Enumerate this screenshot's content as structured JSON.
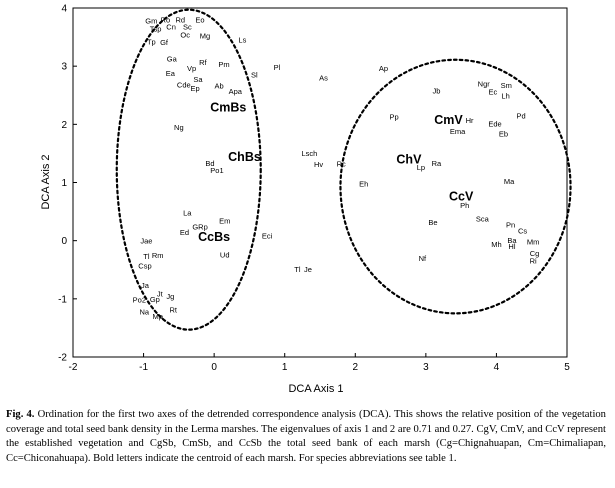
{
  "chart_data": {
    "type": "scatter",
    "xlabel": "DCA Axis 1",
    "ylabel": "DCA Axis 2",
    "xlim": [
      -2,
      5
    ],
    "ylim": [
      -2,
      4
    ],
    "xticks": [
      "-2",
      "-1",
      "0",
      "1",
      "2",
      "3",
      "4",
      "5"
    ],
    "yticks": [
      "-2",
      "-1",
      "0",
      "1",
      "2",
      "3",
      "4"
    ],
    "grid": false,
    "species": [
      {
        "label": "Gm",
        "x": -0.89,
        "y": 3.78
      },
      {
        "label": "Ro",
        "x": -0.69,
        "y": 3.8
      },
      {
        "label": "Rd",
        "x": -0.48,
        "y": 3.8
      },
      {
        "label": "Eo",
        "x": -0.2,
        "y": 3.8
      },
      {
        "label": "Tsp",
        "x": -0.83,
        "y": 3.64
      },
      {
        "label": "Cn",
        "x": -0.61,
        "y": 3.68
      },
      {
        "label": "Sc",
        "x": -0.38,
        "y": 3.68
      },
      {
        "label": "Oc",
        "x": -0.41,
        "y": 3.54
      },
      {
        "label": "Mg",
        "x": -0.13,
        "y": 3.52
      },
      {
        "label": "Tp",
        "x": -0.89,
        "y": 3.42
      },
      {
        "label": "Gf",
        "x": -0.71,
        "y": 3.41
      },
      {
        "label": "Ls",
        "x": 0.4,
        "y": 3.45
      },
      {
        "label": "Ga",
        "x": -0.6,
        "y": 3.13
      },
      {
        "label": "Rf",
        "x": -0.16,
        "y": 3.07
      },
      {
        "label": "Pm",
        "x": 0.14,
        "y": 3.03
      },
      {
        "label": "Pl",
        "x": 0.89,
        "y": 2.98
      },
      {
        "label": "Vp",
        "x": -0.32,
        "y": 2.96
      },
      {
        "label": "Ea",
        "x": -0.62,
        "y": 2.88
      },
      {
        "label": "Sl",
        "x": 0.57,
        "y": 2.85
      },
      {
        "label": "As",
        "x": 1.55,
        "y": 2.8
      },
      {
        "label": "Ap",
        "x": 2.4,
        "y": 2.96
      },
      {
        "label": "Sa",
        "x": -0.23,
        "y": 2.77
      },
      {
        "label": "Cde",
        "x": -0.43,
        "y": 2.68
      },
      {
        "label": "Ep",
        "x": -0.27,
        "y": 2.62
      },
      {
        "label": "Ab",
        "x": 0.07,
        "y": 2.66
      },
      {
        "label": "Apa",
        "x": 0.3,
        "y": 2.57
      },
      {
        "label": "Jb",
        "x": 3.15,
        "y": 2.58
      },
      {
        "label": "Ngr",
        "x": 3.82,
        "y": 2.7
      },
      {
        "label": "Sm",
        "x": 4.14,
        "y": 2.67
      },
      {
        "label": "Ec",
        "x": 3.95,
        "y": 2.56
      },
      {
        "label": "Lh",
        "x": 4.13,
        "y": 2.49
      },
      {
        "label": "Pp",
        "x": 2.55,
        "y": 2.13
      },
      {
        "label": "Hr",
        "x": 3.62,
        "y": 2.07
      },
      {
        "label": "Pd",
        "x": 4.35,
        "y": 2.15
      },
      {
        "label": "Ede",
        "x": 3.98,
        "y": 2.01
      },
      {
        "label": "Ema",
        "x": 3.45,
        "y": 1.88
      },
      {
        "label": "Eb",
        "x": 4.1,
        "y": 1.84
      },
      {
        "label": "Ng",
        "x": -0.5,
        "y": 1.95
      },
      {
        "label": "Lsch",
        "x": 1.35,
        "y": 1.5
      },
      {
        "label": "Hv",
        "x": 1.48,
        "y": 1.31
      },
      {
        "label": "Rc",
        "x": 1.8,
        "y": 1.32
      },
      {
        "label": "Bd",
        "x": -0.06,
        "y": 1.33
      },
      {
        "label": "Po1",
        "x": 0.04,
        "y": 1.21
      },
      {
        "label": "Lp",
        "x": 2.93,
        "y": 1.26
      },
      {
        "label": "Ra",
        "x": 3.15,
        "y": 1.33
      },
      {
        "label": "Ma",
        "x": 4.18,
        "y": 1.02
      },
      {
        "label": "Eh",
        "x": 2.12,
        "y": 0.98
      },
      {
        "label": "Ph",
        "x": 3.55,
        "y": 0.61
      },
      {
        "label": "La",
        "x": -0.38,
        "y": 0.48
      },
      {
        "label": "Em",
        "x": 0.15,
        "y": 0.34
      },
      {
        "label": "Sca",
        "x": 3.8,
        "y": 0.38
      },
      {
        "label": "Be",
        "x": 3.1,
        "y": 0.32
      },
      {
        "label": "Pn",
        "x": 4.2,
        "y": 0.27
      },
      {
        "label": "GRp",
        "x": -0.2,
        "y": 0.24
      },
      {
        "label": "Ed",
        "x": -0.42,
        "y": 0.14
      },
      {
        "label": "Cs",
        "x": 4.37,
        "y": 0.17
      },
      {
        "label": "Eci",
        "x": 0.75,
        "y": 0.08
      },
      {
        "label": "Ba",
        "x": 4.22,
        "y": 0.01
      },
      {
        "label": "Mm",
        "x": 4.52,
        "y": -0.02
      },
      {
        "label": "Jae",
        "x": -0.96,
        "y": 0.0
      },
      {
        "label": "Mh",
        "x": 4.0,
        "y": -0.06
      },
      {
        "label": "Hl",
        "x": 4.22,
        "y": -0.1
      },
      {
        "label": "Cg",
        "x": 4.54,
        "y": -0.22
      },
      {
        "label": "Ud",
        "x": 0.15,
        "y": -0.24
      },
      {
        "label": "Tl",
        "x": -0.96,
        "y": -0.27
      },
      {
        "label": "Rm",
        "x": -0.8,
        "y": -0.25
      },
      {
        "label": "Nf",
        "x": 2.95,
        "y": -0.3
      },
      {
        "label": "Ri",
        "x": 4.52,
        "y": -0.35
      },
      {
        "label": "Csp",
        "x": -0.98,
        "y": -0.43
      },
      {
        "label": "Tl",
        "x": 1.18,
        "y": -0.49
      },
      {
        "label": "Je",
        "x": 1.33,
        "y": -0.49
      },
      {
        "label": "Ja",
        "x": -0.98,
        "y": -0.77
      },
      {
        "label": "Jt",
        "x": -0.77,
        "y": -0.91
      },
      {
        "label": "Jg",
        "x": -0.62,
        "y": -0.96
      },
      {
        "label": "Po2",
        "x": -1.06,
        "y": -1.02
      },
      {
        "label": "Gp",
        "x": -0.84,
        "y": -1.01
      },
      {
        "label": "Rt",
        "x": -0.58,
        "y": -1.19
      },
      {
        "label": "Na",
        "x": -0.99,
        "y": -1.22
      },
      {
        "label": "Mp",
        "x": -0.8,
        "y": -1.3
      }
    ],
    "centroids": [
      {
        "label": "CmBs",
        "x": 0.2,
        "y": 2.3
      },
      {
        "label": "ChBs",
        "x": 0.43,
        "y": 1.45
      },
      {
        "label": "CcBs",
        "x": 0.0,
        "y": 0.07
      },
      {
        "label": "CmV",
        "x": 3.32,
        "y": 2.08
      },
      {
        "label": "ChV",
        "x": 2.76,
        "y": 1.4
      },
      {
        "label": "CcV",
        "x": 3.5,
        "y": 0.77
      }
    ],
    "ellipses": [
      {
        "cx": -0.36,
        "cy": 1.22,
        "rx": 1.02,
        "ry": 2.75,
        "style": "dashed"
      },
      {
        "cx": 3.42,
        "cy": 0.93,
        "rx": 1.63,
        "ry": 2.18,
        "style": "dashed"
      }
    ]
  },
  "caption": {
    "fig_label": "Fig. 4.",
    "text": " Ordination for the first two axes of the detrended correspondence analysis (DCA). This shows the relative position of the vegetation coverage and total seed bank density in the Lerma marshes. The eigenvalues of axis 1 and 2 are 0.71 and 0.27. CgV, CmV, and CcV represent the established vegetation and CgSb, CmSb, and CcSb the total seed bank of each marsh (Cg=Chignahuapan, Cm=Chimaliapan, Cc=Chiconahuapa). Bold letters indicate the centroid of each marsh. For species abbreviations see table 1."
  }
}
